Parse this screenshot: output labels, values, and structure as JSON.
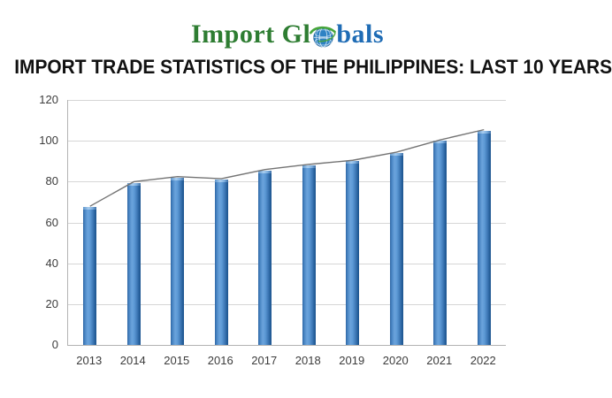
{
  "logo": {
    "part1": "Import Gl",
    "part2": "bals",
    "green": "#2e7d32",
    "blue": "#1f6cb5"
  },
  "title": "IMPORT TRADE STATISTICS OF THE PHILIPPINES: LAST 10 YEARS",
  "chart_data": {
    "type": "bar",
    "title": "IMPORT TRADE STATISTICS OF THE PHILIPPINES: LAST 10 YEARS",
    "categories": [
      "2013",
      "2014",
      "2015",
      "2016",
      "2017",
      "2018",
      "2019",
      "2020",
      "2021",
      "2022"
    ],
    "series": [
      {
        "name": "imports-bars",
        "type": "bar",
        "color": "#3e7fc1",
        "values": [
          67.5,
          79.5,
          82,
          81,
          85.5,
          88,
          90,
          94,
          100,
          105
        ]
      },
      {
        "name": "imports-trend-line",
        "type": "line",
        "color": "#737373",
        "values": [
          67.5,
          79.5,
          82,
          81,
          85.5,
          88,
          90,
          94,
          100,
          105
        ]
      }
    ],
    "xlabel": "",
    "ylabel": "",
    "ylim": [
      0,
      120
    ],
    "yticks": [
      0,
      20,
      40,
      60,
      80,
      100,
      120
    ],
    "grid": true,
    "legend_position": "none",
    "bar_color_hint": "blue 3-D gradient",
    "gridline_color": "#d6d6d6",
    "axis_color": "#b3b3b3"
  }
}
